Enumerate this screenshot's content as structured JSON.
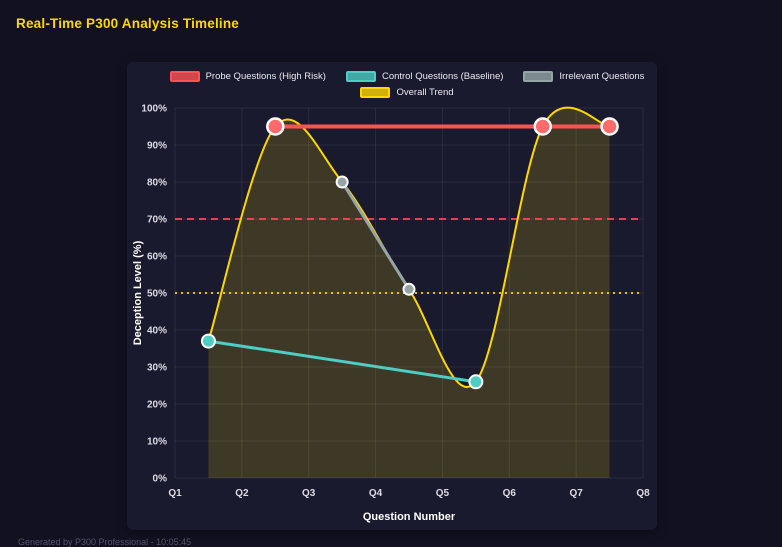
{
  "page": {
    "title": "Real-Time P300 Analysis Timeline",
    "footer": "Generated by P300 Professional - 10:05:45"
  },
  "colors": {
    "page_background": "#111122",
    "panel_background": "#1a1a2e",
    "title": "#ffd700",
    "grid": "rgba(255,255,255,0.08)"
  },
  "chart_data": {
    "type": "line",
    "xlabel": "Question Number",
    "ylabel": "Deception Level (%)",
    "xlim": [
      1,
      8
    ],
    "ylim": [
      0,
      100
    ],
    "x_tick_values": [
      1,
      2,
      3,
      4,
      5,
      6,
      7,
      8
    ],
    "x_tick_labels": [
      "Q1",
      "Q2",
      "Q3",
      "Q4",
      "Q5",
      "Q6",
      "Q7",
      "Q8"
    ],
    "y_tick_step": 10,
    "y_tick_suffix": "%",
    "grid": true,
    "legend_position": "top",
    "series": [
      {
        "name": "Probe Questions (High Risk)",
        "color": "#ff5252",
        "marker_fill": "#ff6b6b",
        "x": [
          2.5,
          6.5,
          7.5
        ],
        "y": [
          95,
          95,
          95
        ],
        "line_width": 4,
        "marker_radius": 8,
        "smooth": false
      },
      {
        "name": "Control Questions (Baseline)",
        "color": "#4ecdc4",
        "marker_fill": "#4ecdc4",
        "x": [
          1.5,
          5.5
        ],
        "y": [
          37,
          26
        ],
        "line_width": 3,
        "marker_radius": 6.5,
        "smooth": false
      },
      {
        "name": "Irrelevant Questions",
        "color": "#95a5a6",
        "marker_fill": "#95a5a6",
        "x": [
          3.5,
          4.5
        ],
        "y": [
          80,
          51
        ],
        "line_width": 3,
        "marker_radius": 5.5,
        "smooth": false
      },
      {
        "name": "Overall Trend",
        "color": "#ffd700",
        "x": [
          1.5,
          2.5,
          3.5,
          4.5,
          5.5,
          6.5,
          7.5
        ],
        "y": [
          37,
          95,
          80,
          51,
          26,
          95,
          95
        ],
        "line_width": 2,
        "marker_radius": 0,
        "smooth": true,
        "area_fill": "rgba(255,215,0,0.16)"
      }
    ],
    "thresholds": [
      {
        "value": 70,
        "color": "#ff4757",
        "dash": "7,5",
        "width": 1.8
      },
      {
        "value": 50,
        "color": "#ffd700",
        "dash": "2,4",
        "width": 1.8
      }
    ]
  }
}
